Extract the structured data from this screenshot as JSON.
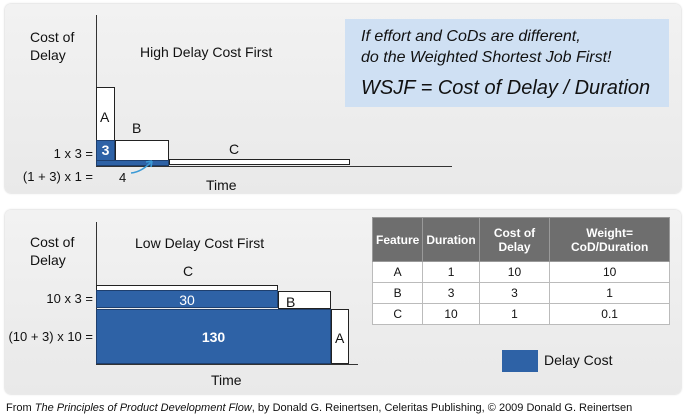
{
  "top_panel": {
    "y_axis_label_line1": "Cost of",
    "y_axis_label_line2": "Delay",
    "title": "High Delay Cost First",
    "x_axis_label": "Time",
    "formula_1": "1 x 3 =",
    "formula_2": "(1 + 3) x 1 =",
    "label_a": "A",
    "label_b": "B",
    "label_c": "C",
    "value_a": "3",
    "value_b": "4"
  },
  "callout": {
    "line1": "If effort and CoDs are different,",
    "line2": "do the Weighted Shortest Job First!",
    "formula": "WSJF = Cost of Delay / Duration",
    "background_color": "#cfe0f3"
  },
  "bottom_panel": {
    "y_axis_label_line1": "Cost of",
    "y_axis_label_line2": "Delay",
    "title": "Low Delay Cost First",
    "x_axis_label": "Time",
    "formula_1": "10 x 3 =",
    "formula_2": "(10 + 3) x 10 =",
    "label_a": "A",
    "label_b": "B",
    "label_c": "C",
    "value_c": "30",
    "value_b": "130"
  },
  "table": {
    "headers": [
      "Feature",
      "Duration",
      "Cost of Delay",
      "Weight= CoD/Duration"
    ],
    "rows": [
      [
        "A",
        "1",
        "10",
        "10"
      ],
      [
        "B",
        "3",
        "3",
        "1"
      ],
      [
        "C",
        "10",
        "1",
        "0.1"
      ]
    ]
  },
  "legend": {
    "label": "Delay Cost",
    "color": "#2e62a6"
  },
  "footer": {
    "prefix": "From ",
    "book_title": "The Principles of Product Development Flow",
    "suffix": ", by Donald G. Reinertsen, Celeritas Publishing,  © 2009 Donald G. Reinertsen"
  }
}
